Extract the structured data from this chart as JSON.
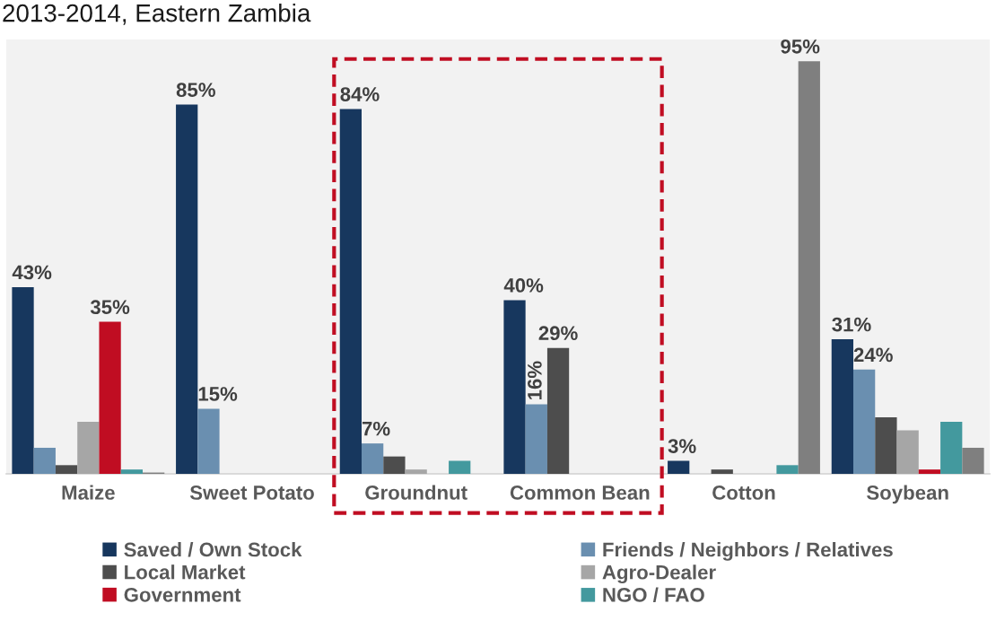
{
  "chart_data": {
    "type": "bar",
    "title": "2013-2014, Eastern Zambia",
    "categories": [
      "Maize",
      "Sweet Potato",
      "Groundnut",
      "Common Bean",
      "Cotton",
      "Soybean"
    ],
    "series": [
      {
        "name": "Saved / Own Stock",
        "color": "#17375e",
        "values": [
          43,
          85,
          84,
          40,
          3,
          31
        ],
        "value_labels": [
          "43%",
          "85%",
          "84%",
          "40%",
          "3%",
          "31%"
        ]
      },
      {
        "name": "Friends / Neighbors / Relatives",
        "color": "#6a8fb0",
        "values": [
          6,
          15,
          7,
          16,
          null,
          24
        ],
        "value_labels": [
          null,
          "15%",
          "7%",
          "16%",
          null,
          "24%"
        ]
      },
      {
        "name": "Local Market",
        "color": "#4d4d4d",
        "values": [
          2,
          null,
          4,
          29,
          1,
          13
        ],
        "value_labels": [
          null,
          null,
          null,
          "29%",
          null,
          null
        ]
      },
      {
        "name": "Agro-Dealer",
        "color": "#a6a6a6",
        "values": [
          12,
          null,
          1,
          null,
          null,
          10
        ]
      },
      {
        "name": "Government",
        "color": "#c00d22",
        "values": [
          35,
          null,
          null,
          null,
          null,
          1
        ],
        "value_labels": [
          "35%",
          null,
          null,
          null,
          null,
          null
        ]
      },
      {
        "name": "NGO / FAO",
        "color": "#43999e",
        "values": [
          1,
          null,
          3,
          null,
          2,
          12
        ]
      },
      {
        "color": "#7f7f7f",
        "values": [
          0.3,
          null,
          null,
          null,
          95,
          6
        ],
        "value_labels": [
          null,
          null,
          null,
          null,
          "95%",
          null
        ]
      }
    ],
    "ylim": [
      0,
      100
    ],
    "tick_labels": "x",
    "legend": "bottom"
  }
}
